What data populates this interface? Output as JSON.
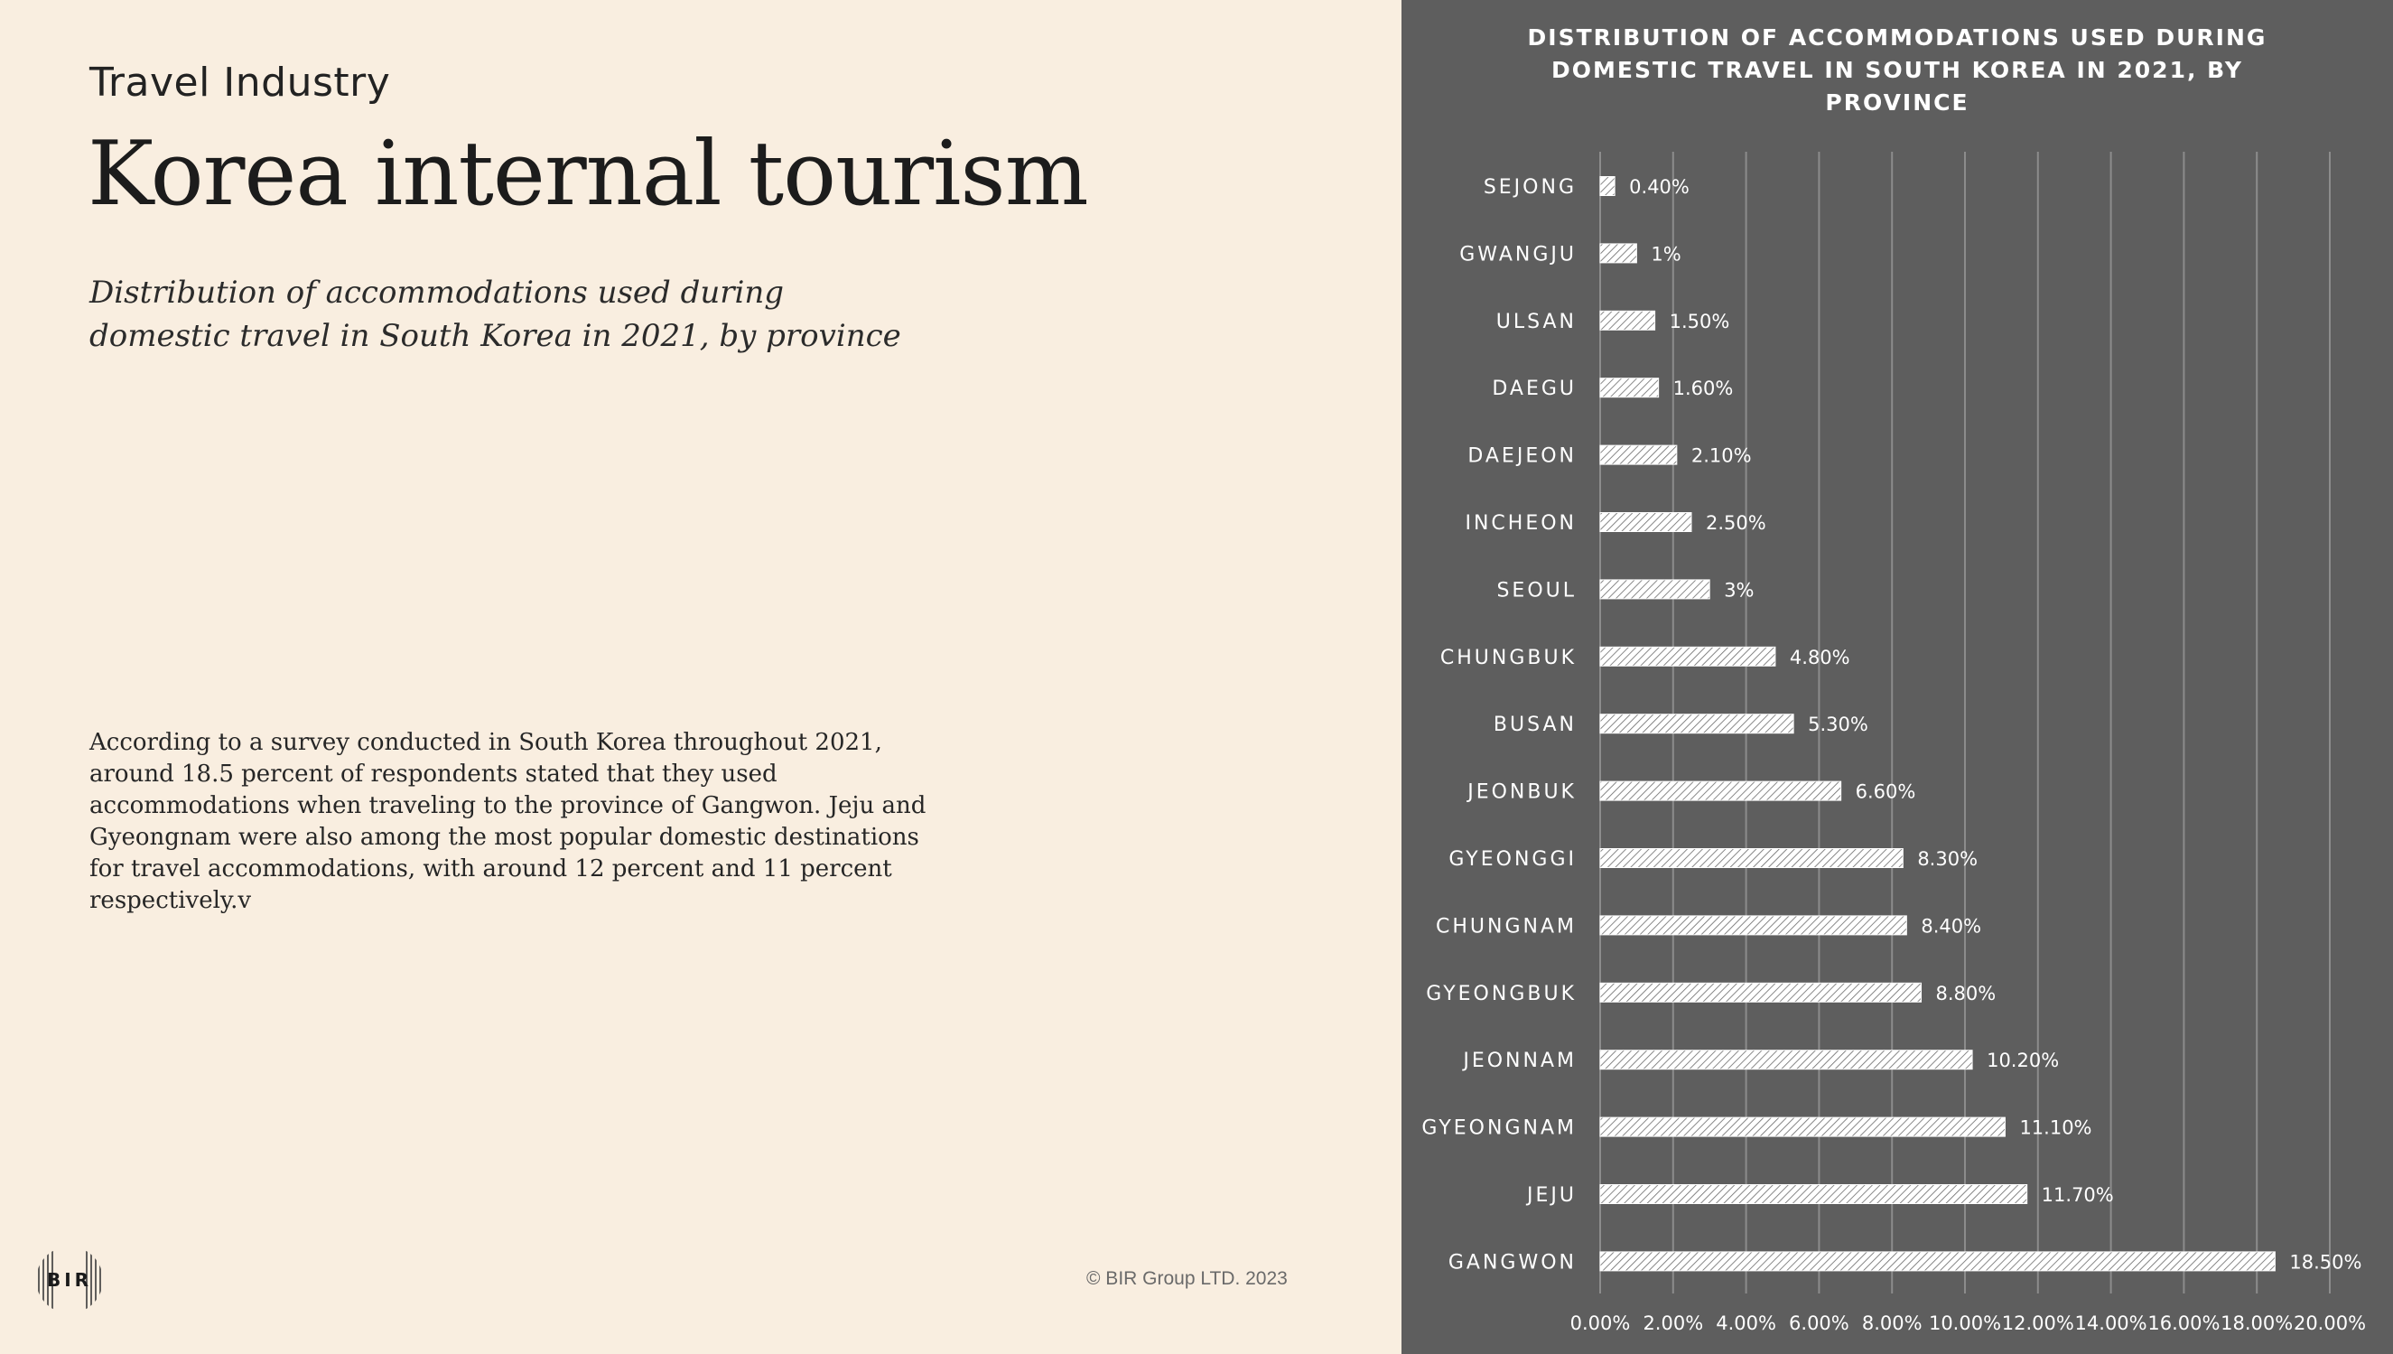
{
  "header": {
    "category": "Travel Industry",
    "title": "Korea internal tourism",
    "subtitle": "Distribution of accommodations used during domestic travel in South Korea in 2021, by province"
  },
  "body": {
    "text": "According to a survey conducted in South Korea throughout 2021, around 18.5 percent of respondents stated that they used accommodations when traveling to the province of Gangwon. Jeju and Gyeongnam were also among  the most popular domestic destinations for travel accommodations, with  around 12 percent and 11 percent respectively.v"
  },
  "footer": {
    "copyright": "© BIR Group LTD. 2023",
    "logo_text": "BIR"
  },
  "colors": {
    "left_background": "#f9eee0",
    "chart_background": "#5e5e5e",
    "bar_fill": "#ffffff",
    "gridline": "#8c8c8c"
  },
  "chart_data": {
    "type": "bar",
    "orientation": "horizontal",
    "title": "DISTRIBUTION OF ACCOMMODATIONS USED DURING DOMESTIC TRAVEL IN SOUTH KOREA IN 2021, BY PROVINCE",
    "categories": [
      "SEJONG",
      "GWANGJU",
      "ULSAN",
      "DAEGU",
      "DAEJEON",
      "INCHEON",
      "SEOUL",
      "CHUNGBUK",
      "BUSAN",
      "JEONBUK",
      "GYEONGGI",
      "CHUNGNAM",
      "GYEONGBUK",
      "JEONNAM",
      "GYEONGNAM",
      "JEJU",
      "GANGWON"
    ],
    "values": [
      0.4,
      1,
      1.5,
      1.6,
      2.1,
      2.5,
      3,
      4.8,
      5.3,
      6.6,
      8.3,
      8.4,
      8.8,
      10.2,
      11.1,
      11.7,
      18.5
    ],
    "data_labels": [
      "0.40%",
      "1%",
      "1.50%",
      "1.60%",
      "2.10%",
      "2.50%",
      "3%",
      "4.80%",
      "5.30%",
      "6.60%",
      "8.30%",
      "8.40%",
      "8.80%",
      "10.20%",
      "11.10%",
      "11.70%",
      "18.50%"
    ],
    "x_ticks": [
      "0.00%",
      "2.00%",
      "4.00%",
      "6.00%",
      "8.00%",
      "10.00%",
      "12.00%",
      "14.00%",
      "16.00%",
      "18.00%",
      "20.00%"
    ],
    "xlim": [
      0,
      20
    ],
    "xlabel": "",
    "ylabel": "",
    "grid": "vertical",
    "bar_pattern": "hatched"
  }
}
